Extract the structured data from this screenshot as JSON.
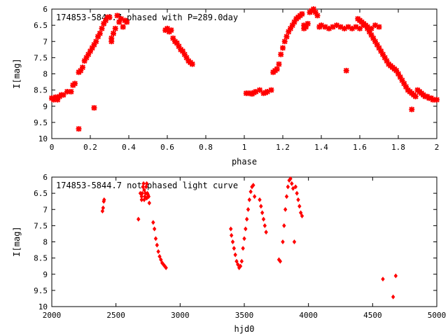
{
  "chart_data": [
    {
      "type": "scatter",
      "title": "174853-5844.7 phased with P=289.0day",
      "xlabel": "phase",
      "ylabel": "I[mag]",
      "xlim": [
        0,
        2
      ],
      "ylim": [
        10,
        6
      ],
      "y_inverted": true,
      "x_ticks": [
        "0",
        "0.2",
        "0.4",
        "0.6",
        "0.8",
        "1",
        "1.2",
        "1.4",
        "1.6",
        "1.8",
        "2"
      ],
      "y_ticks": [
        "6",
        "6.5",
        "7",
        "7.5",
        "8",
        "8.5",
        "9",
        "9.5",
        "10"
      ],
      "marker_color": "#ff0000",
      "grid": false,
      "series": [
        {
          "x": [
            0.0,
            0.01,
            0.02,
            0.03,
            0.04,
            0.05,
            0.06,
            0.08,
            0.1,
            0.11,
            0.12,
            0.14,
            0.15,
            0.16,
            0.17,
            0.18,
            0.19,
            0.2,
            0.21,
            0.22,
            0.23,
            0.24,
            0.25,
            0.26,
            0.27,
            0.28,
            0.29,
            0.3,
            0.31,
            0.31,
            0.32,
            0.33,
            0.34,
            0.35,
            0.36,
            0.37,
            0.38,
            0.39,
            0.59,
            0.6,
            0.61,
            0.62,
            0.63,
            0.64,
            0.65,
            0.66,
            0.67,
            0.68,
            0.69,
            0.7,
            0.71,
            0.72,
            0.73,
            0.14,
            0.22,
            1.01,
            1.02,
            1.03,
            1.04,
            1.05,
            1.06,
            1.08,
            1.1,
            1.11,
            1.12,
            1.14,
            1.15,
            1.16,
            1.17,
            1.18,
            1.19,
            1.2,
            1.21,
            1.22,
            1.23,
            1.24,
            1.25,
            1.26,
            1.27,
            1.28,
            1.29,
            1.3,
            1.31,
            1.31,
            1.32,
            1.33,
            1.34,
            1.35,
            1.36,
            1.37,
            1.38,
            1.39,
            1.4,
            1.42,
            1.44,
            1.46,
            1.48,
            1.5,
            1.52,
            1.54,
            1.56,
            1.58,
            1.6,
            1.62,
            1.64,
            1.66,
            1.68,
            1.7,
            1.59,
            1.6,
            1.61,
            1.62,
            1.63,
            1.64,
            1.65,
            1.66,
            1.67,
            1.68,
            1.69,
            1.7,
            1.71,
            1.72,
            1.73,
            1.74,
            1.75,
            1.76,
            1.77,
            1.78,
            1.79,
            1.8,
            1.81,
            1.82,
            1.83,
            1.84,
            1.85,
            1.86,
            1.87,
            1.88,
            1.89,
            1.9,
            1.91,
            1.92,
            1.93,
            1.94,
            1.95,
            1.96,
            1.97,
            1.98,
            1.99,
            2.0,
            1.87,
            1.53
          ],
          "y": [
            8.75,
            8.8,
            8.72,
            8.8,
            8.7,
            8.65,
            8.65,
            8.55,
            8.55,
            8.35,
            8.3,
            7.95,
            7.9,
            7.8,
            7.6,
            7.5,
            7.4,
            7.3,
            7.2,
            7.1,
            7.0,
            6.85,
            6.75,
            6.6,
            6.45,
            6.35,
            6.25,
            6.25,
            7.0,
            6.9,
            6.75,
            6.6,
            6.2,
            6.4,
            6.3,
            6.55,
            6.35,
            6.4,
            6.65,
            6.6,
            6.7,
            6.65,
            6.9,
            7.0,
            7.05,
            7.15,
            7.25,
            7.3,
            7.4,
            7.5,
            7.6,
            7.65,
            7.7,
            9.7,
            9.05,
            8.6,
            8.6,
            8.6,
            8.62,
            8.58,
            8.55,
            8.5,
            8.6,
            8.58,
            8.55,
            8.5,
            7.95,
            7.9,
            7.85,
            7.7,
            7.4,
            7.2,
            7.0,
            6.85,
            6.7,
            6.6,
            6.5,
            6.4,
            6.3,
            6.25,
            6.2,
            6.15,
            6.6,
            6.5,
            6.55,
            6.45,
            6.1,
            6.05,
            6.0,
            6.1,
            6.2,
            6.55,
            6.5,
            6.55,
            6.6,
            6.55,
            6.5,
            6.55,
            6.6,
            6.55,
            6.6,
            6.55,
            6.6,
            6.5,
            6.55,
            6.6,
            6.5,
            6.55,
            6.3,
            6.35,
            6.4,
            6.45,
            6.5,
            6.6,
            6.7,
            6.8,
            6.9,
            7.0,
            7.1,
            7.2,
            7.3,
            7.4,
            7.5,
            7.6,
            7.7,
            7.75,
            7.8,
            7.85,
            7.9,
            8.0,
            8.1,
            8.2,
            8.3,
            8.4,
            8.5,
            8.55,
            8.6,
            8.65,
            8.7,
            8.5,
            8.55,
            8.6,
            8.65,
            8.7,
            8.7,
            8.75,
            8.75,
            8.8,
            8.8,
            8.8,
            9.1,
            7.9
          ]
        }
      ]
    },
    {
      "type": "scatter",
      "title": "174853-5844.7 not phased light curve",
      "xlabel": "hjd0",
      "ylabel": "I[mag]",
      "xlim": [
        2000,
        5000
      ],
      "ylim": [
        10,
        6
      ],
      "y_inverted": true,
      "x_ticks": [
        "2000",
        "2500",
        "3000",
        "3500",
        "4000",
        "4500",
        "5000"
      ],
      "y_ticks": [
        "6",
        "6.5",
        "7",
        "7.5",
        "8",
        "8.5",
        "9",
        "9.5",
        "10"
      ],
      "marker_color": "#ff0000",
      "grid": false,
      "series": [
        {
          "x": [
            2395,
            2400,
            2405,
            2408,
            2675,
            2690,
            2700,
            2705,
            2710,
            2715,
            2720,
            2725,
            2730,
            2735,
            2740,
            2745,
            2750,
            2755,
            2700,
            2720,
            2740,
            2760,
            2790,
            2800,
            2810,
            2820,
            2830,
            2840,
            2850,
            2860,
            2870,
            2880,
            2890,
            3395,
            3400,
            3410,
            3420,
            3430,
            3440,
            3450,
            3460,
            3470,
            3480,
            3490,
            3500,
            3510,
            3520,
            3530,
            3540,
            3550,
            3560,
            3570,
            3580,
            3620,
            3630,
            3640,
            3650,
            3660,
            3670,
            3770,
            3780,
            3800,
            3810,
            3820,
            3830,
            3840,
            3850,
            3860,
            3870,
            3880,
            3890,
            3900,
            3910,
            3920,
            3930,
            3940,
            3950,
            4580,
            4660,
            4680
          ],
          "y": [
            7.05,
            6.95,
            6.75,
            6.7,
            7.3,
            6.5,
            6.6,
            6.5,
            6.3,
            6.2,
            6.4,
            6.6,
            6.5,
            6.3,
            6.2,
            6.5,
            6.55,
            6.6,
            6.7,
            6.7,
            6.65,
            6.8,
            7.4,
            7.6,
            7.9,
            8.1,
            8.3,
            8.45,
            8.55,
            8.65,
            8.7,
            8.75,
            8.8,
            7.6,
            7.8,
            8.0,
            8.2,
            8.4,
            8.6,
            8.7,
            8.8,
            8.75,
            8.6,
            8.2,
            7.9,
            7.6,
            7.3,
            7.0,
            6.7,
            6.45,
            6.3,
            6.25,
            6.6,
            6.7,
            6.9,
            7.1,
            7.3,
            7.5,
            7.7,
            8.55,
            8.6,
            8.0,
            7.5,
            7.0,
            6.6,
            6.3,
            6.1,
            6.05,
            6.2,
            6.35,
            8.0,
            6.3,
            6.5,
            6.7,
            6.9,
            7.1,
            7.2,
            9.15,
            9.7,
            9.05
          ]
        }
      ]
    }
  ]
}
